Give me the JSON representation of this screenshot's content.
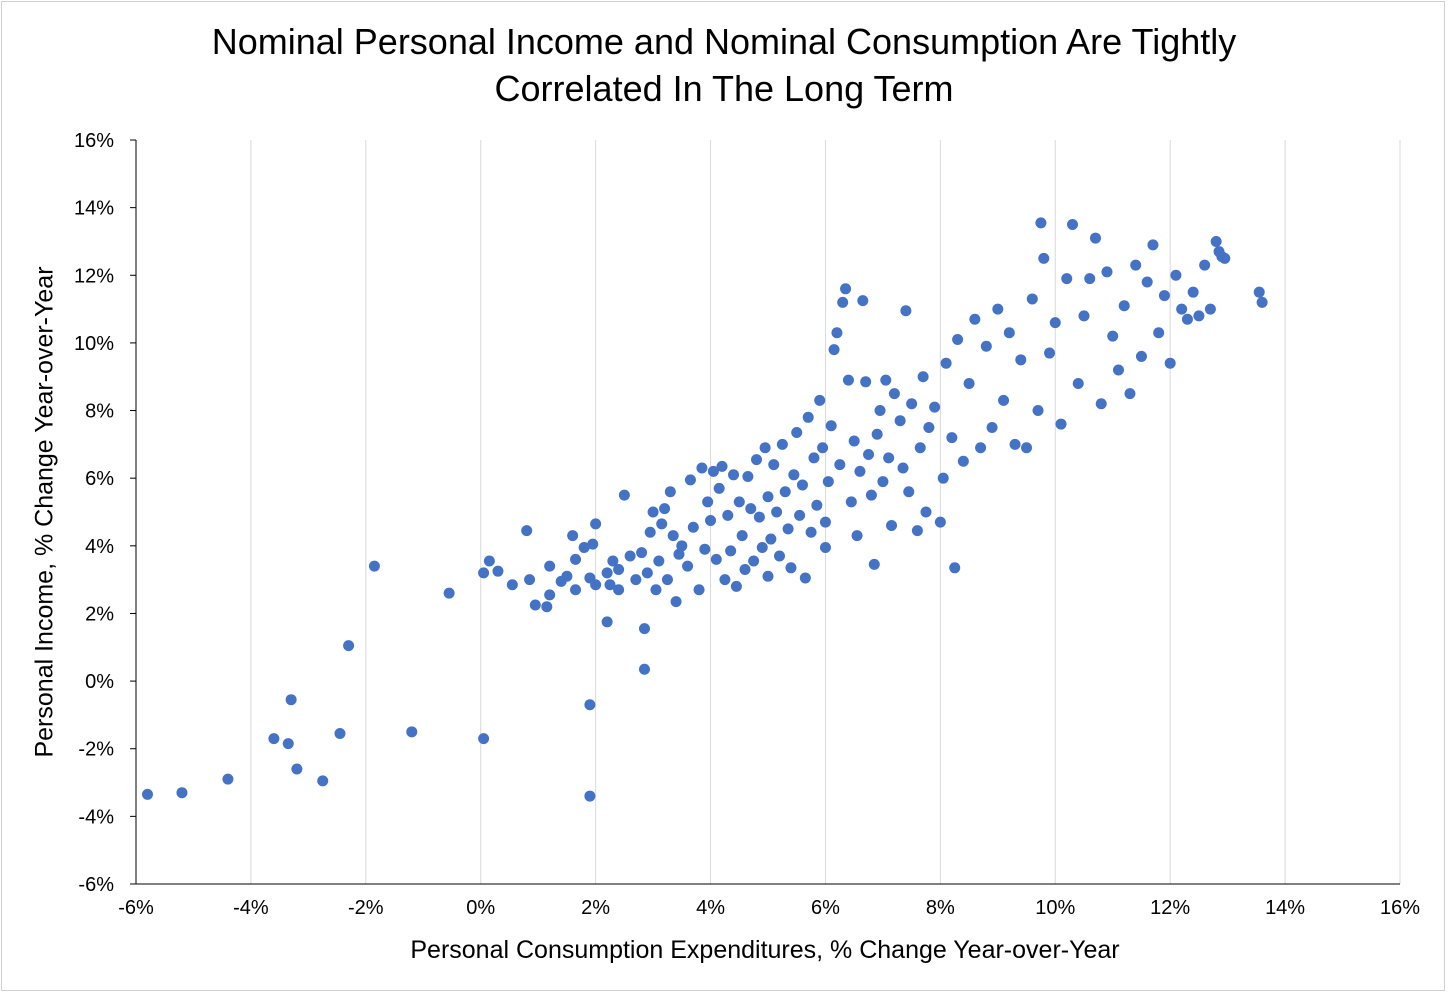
{
  "chart_data": {
    "type": "scatter",
    "title_lines": [
      "Nominal Personal Income and Nominal Consumption Are Tightly",
      "Correlated In The Long Term"
    ],
    "xlabel": "Personal Consumption Expenditures, % Change Year-over-Year",
    "ylabel": "Personal Income, % Change Year-over-Year",
    "xlim": [
      -6,
      16
    ],
    "ylim": [
      -6,
      16
    ],
    "x_ticks": [
      "-6%",
      "-4%",
      "-2%",
      "0%",
      "2%",
      "4%",
      "6%",
      "8%",
      "10%",
      "12%",
      "14%",
      "16%"
    ],
    "y_ticks": [
      "16%",
      "14%",
      "12%",
      "10%",
      "8%",
      "6%",
      "4%",
      "2%",
      "0%",
      "-2%",
      "-4%",
      "-6%"
    ],
    "grid": "vertical",
    "marker_color": "#4472C4",
    "points": [
      [
        -5.8,
        -3.35
      ],
      [
        -5.2,
        -3.3
      ],
      [
        -4.4,
        -2.9
      ],
      [
        -3.6,
        -1.7
      ],
      [
        -3.35,
        -1.85
      ],
      [
        -3.3,
        -0.55
      ],
      [
        -3.2,
        -2.6
      ],
      [
        -2.75,
        -2.95
      ],
      [
        -2.45,
        -1.55
      ],
      [
        -2.3,
        1.05
      ],
      [
        -1.85,
        3.4
      ],
      [
        -1.2,
        -1.5
      ],
      [
        -0.55,
        2.6
      ],
      [
        0.05,
        -1.7
      ],
      [
        0.05,
        3.2
      ],
      [
        0.15,
        3.55
      ],
      [
        0.3,
        3.25
      ],
      [
        0.55,
        2.85
      ],
      [
        0.8,
        4.45
      ],
      [
        0.85,
        3.0
      ],
      [
        0.95,
        2.25
      ],
      [
        1.15,
        2.2
      ],
      [
        1.2,
        2.55
      ],
      [
        1.2,
        3.4
      ],
      [
        1.4,
        2.95
      ],
      [
        1.5,
        3.1
      ],
      [
        1.6,
        4.3
      ],
      [
        1.65,
        3.6
      ],
      [
        1.65,
        2.7
      ],
      [
        1.8,
        3.95
      ],
      [
        1.9,
        3.05
      ],
      [
        1.9,
        -0.7
      ],
      [
        1.9,
        -3.4
      ],
      [
        1.95,
        4.05
      ],
      [
        2.0,
        4.65
      ],
      [
        2.0,
        2.85
      ],
      [
        2.2,
        1.75
      ],
      [
        2.2,
        3.2
      ],
      [
        2.25,
        2.85
      ],
      [
        2.3,
        3.55
      ],
      [
        2.4,
        2.7
      ],
      [
        2.4,
        3.3
      ],
      [
        2.5,
        5.5
      ],
      [
        2.6,
        3.7
      ],
      [
        2.7,
        3.0
      ],
      [
        2.8,
        3.8
      ],
      [
        2.85,
        1.55
      ],
      [
        2.85,
        0.35
      ],
      [
        2.9,
        3.2
      ],
      [
        2.95,
        4.4
      ],
      [
        3.0,
        5.0
      ],
      [
        3.05,
        2.7
      ],
      [
        3.1,
        3.55
      ],
      [
        3.15,
        4.65
      ],
      [
        3.2,
        5.1
      ],
      [
        3.25,
        3.0
      ],
      [
        3.3,
        5.6
      ],
      [
        3.35,
        4.3
      ],
      [
        3.4,
        2.35
      ],
      [
        3.45,
        3.75
      ],
      [
        3.5,
        4.0
      ],
      [
        3.6,
        3.4
      ],
      [
        3.65,
        5.95
      ],
      [
        3.7,
        4.55
      ],
      [
        3.8,
        2.7
      ],
      [
        3.85,
        6.3
      ],
      [
        3.9,
        3.9
      ],
      [
        3.95,
        5.3
      ],
      [
        4.0,
        4.75
      ],
      [
        4.05,
        6.2
      ],
      [
        4.1,
        3.6
      ],
      [
        4.15,
        5.7
      ],
      [
        4.2,
        6.35
      ],
      [
        4.25,
        3.0
      ],
      [
        4.3,
        4.9
      ],
      [
        4.35,
        3.85
      ],
      [
        4.4,
        6.1
      ],
      [
        4.45,
        2.8
      ],
      [
        4.5,
        5.3
      ],
      [
        4.55,
        4.3
      ],
      [
        4.6,
        3.3
      ],
      [
        4.65,
        6.05
      ],
      [
        4.7,
        5.1
      ],
      [
        4.75,
        3.55
      ],
      [
        4.8,
        6.55
      ],
      [
        4.85,
        4.85
      ],
      [
        4.9,
        3.95
      ],
      [
        4.95,
        6.9
      ],
      [
        5.0,
        5.45
      ],
      [
        5.0,
        3.1
      ],
      [
        5.05,
        4.2
      ],
      [
        5.1,
        6.4
      ],
      [
        5.15,
        5.0
      ],
      [
        5.2,
        3.7
      ],
      [
        5.25,
        7.0
      ],
      [
        5.3,
        5.6
      ],
      [
        5.35,
        4.5
      ],
      [
        5.4,
        3.35
      ],
      [
        5.45,
        6.1
      ],
      [
        5.5,
        7.35
      ],
      [
        5.55,
        4.9
      ],
      [
        5.6,
        5.8
      ],
      [
        5.65,
        3.05
      ],
      [
        5.7,
        7.8
      ],
      [
        5.75,
        4.4
      ],
      [
        5.8,
        6.6
      ],
      [
        5.85,
        5.2
      ],
      [
        5.9,
        8.3
      ],
      [
        5.95,
        6.9
      ],
      [
        6.0,
        4.7
      ],
      [
        6.0,
        3.95
      ],
      [
        6.05,
        5.9
      ],
      [
        6.1,
        7.55
      ],
      [
        6.15,
        9.8
      ],
      [
        6.2,
        10.3
      ],
      [
        6.25,
        6.4
      ],
      [
        6.3,
        11.2
      ],
      [
        6.35,
        11.6
      ],
      [
        6.4,
        8.9
      ],
      [
        6.45,
        5.3
      ],
      [
        6.5,
        7.1
      ],
      [
        6.55,
        4.3
      ],
      [
        6.6,
        6.2
      ],
      [
        6.65,
        11.25
      ],
      [
        6.7,
        8.85
      ],
      [
        6.75,
        6.7
      ],
      [
        6.8,
        5.5
      ],
      [
        6.85,
        3.45
      ],
      [
        6.9,
        7.3
      ],
      [
        6.95,
        8.0
      ],
      [
        7.0,
        5.9
      ],
      [
        7.05,
        8.9
      ],
      [
        7.1,
        6.6
      ],
      [
        7.15,
        4.6
      ],
      [
        7.2,
        8.5
      ],
      [
        7.3,
        7.7
      ],
      [
        7.35,
        6.3
      ],
      [
        7.4,
        10.95
      ],
      [
        7.45,
        5.6
      ],
      [
        7.5,
        8.2
      ],
      [
        7.6,
        4.45
      ],
      [
        7.65,
        6.9
      ],
      [
        7.7,
        9.0
      ],
      [
        7.75,
        5.0
      ],
      [
        7.8,
        7.5
      ],
      [
        7.9,
        8.1
      ],
      [
        8.0,
        4.7
      ],
      [
        8.05,
        6.0
      ],
      [
        8.1,
        9.4
      ],
      [
        8.2,
        7.2
      ],
      [
        8.25,
        3.35
      ],
      [
        8.3,
        10.1
      ],
      [
        8.4,
        6.5
      ],
      [
        8.5,
        8.8
      ],
      [
        8.6,
        10.7
      ],
      [
        8.7,
        6.9
      ],
      [
        8.8,
        9.9
      ],
      [
        8.9,
        7.5
      ],
      [
        9.0,
        11.0
      ],
      [
        9.1,
        8.3
      ],
      [
        9.2,
        10.3
      ],
      [
        9.3,
        7.0
      ],
      [
        9.4,
        9.5
      ],
      [
        9.5,
        6.9
      ],
      [
        9.6,
        11.3
      ],
      [
        9.7,
        8.0
      ],
      [
        9.75,
        13.55
      ],
      [
        9.8,
        12.5
      ],
      [
        9.9,
        9.7
      ],
      [
        10.0,
        10.6
      ],
      [
        10.1,
        7.6
      ],
      [
        10.2,
        11.9
      ],
      [
        10.3,
        13.5
      ],
      [
        10.4,
        8.8
      ],
      [
        10.5,
        10.8
      ],
      [
        10.6,
        11.9
      ],
      [
        10.7,
        13.1
      ],
      [
        10.8,
        8.2
      ],
      [
        10.9,
        12.1
      ],
      [
        11.0,
        10.2
      ],
      [
        11.1,
        9.2
      ],
      [
        11.2,
        11.1
      ],
      [
        11.3,
        8.5
      ],
      [
        11.4,
        12.3
      ],
      [
        11.5,
        9.6
      ],
      [
        11.6,
        11.8
      ],
      [
        11.7,
        12.9
      ],
      [
        11.8,
        10.3
      ],
      [
        11.9,
        11.4
      ],
      [
        12.0,
        9.4
      ],
      [
        12.1,
        12.0
      ],
      [
        12.2,
        11.0
      ],
      [
        12.3,
        10.7
      ],
      [
        12.4,
        11.5
      ],
      [
        12.5,
        10.8
      ],
      [
        12.6,
        12.3
      ],
      [
        12.7,
        11.0
      ],
      [
        12.8,
        13.0
      ],
      [
        12.85,
        12.7
      ],
      [
        12.9,
        12.55
      ],
      [
        12.95,
        12.5
      ],
      [
        13.55,
        11.5
      ],
      [
        13.6,
        11.2
      ]
    ]
  }
}
